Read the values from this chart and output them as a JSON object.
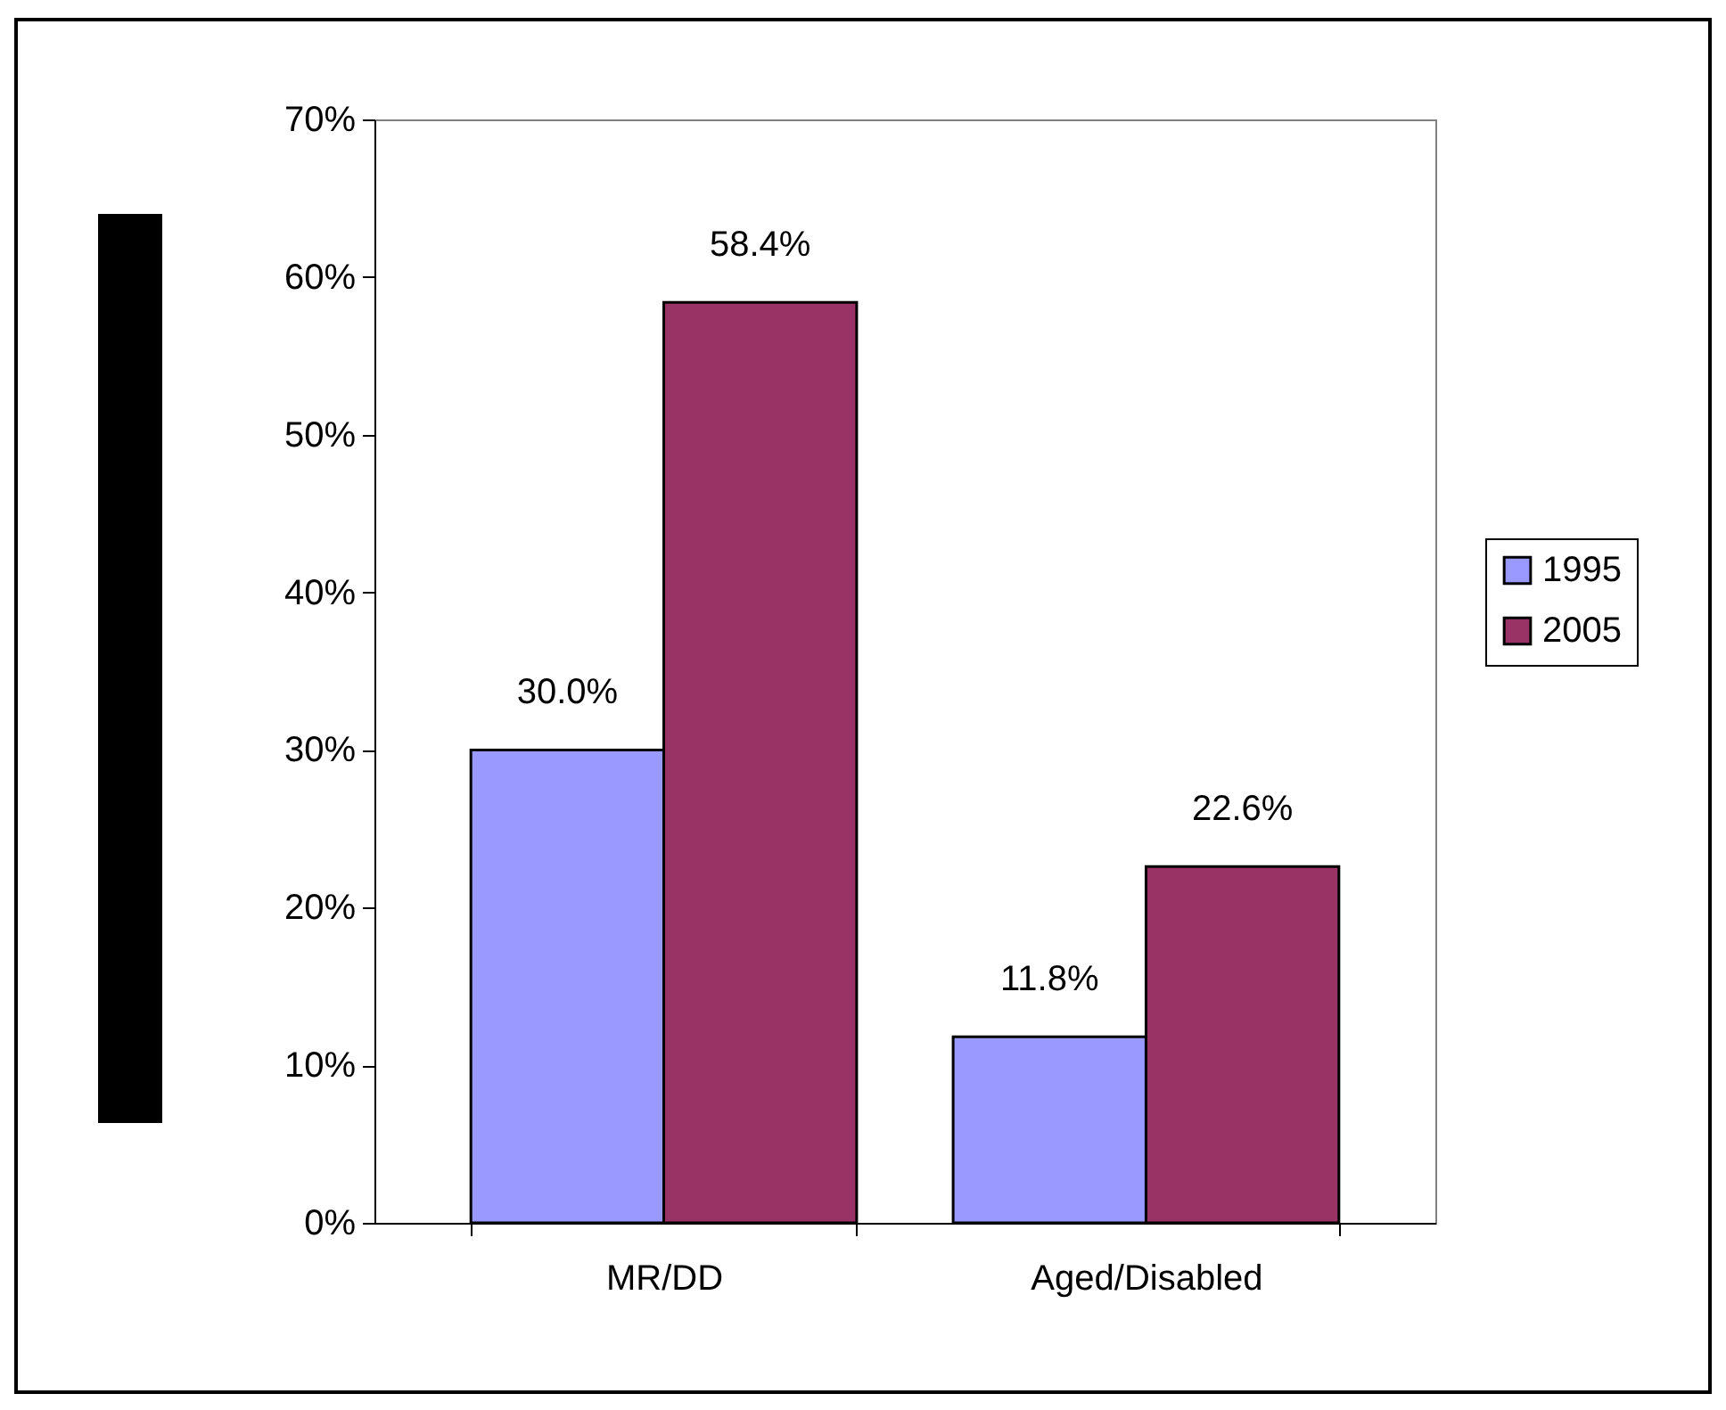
{
  "chart_data": {
    "type": "bar",
    "categories": [
      "MR/DD",
      "Aged/Disabled"
    ],
    "series": [
      {
        "name": "1995",
        "color": "#9999ff",
        "values": [
          30.0,
          11.8
        ],
        "value_labels": [
          "30.0%",
          "11.8%"
        ]
      },
      {
        "name": "2005",
        "color": "#993366",
        "values": [
          58.4,
          22.6
        ],
        "value_labels": [
          "58.4%",
          "22.6%"
        ]
      }
    ],
    "ylim": [
      0,
      70
    ],
    "yticks": [
      {
        "value": 0,
        "label": "0%"
      },
      {
        "value": 10,
        "label": "10%"
      },
      {
        "value": 20,
        "label": "20%"
      },
      {
        "value": 30,
        "label": "30%"
      },
      {
        "value": 40,
        "label": "40%"
      },
      {
        "value": 50,
        "label": "50%"
      },
      {
        "value": 60,
        "label": "60%"
      },
      {
        "value": 70,
        "label": "70%"
      }
    ],
    "grid": false,
    "legend": "right"
  }
}
